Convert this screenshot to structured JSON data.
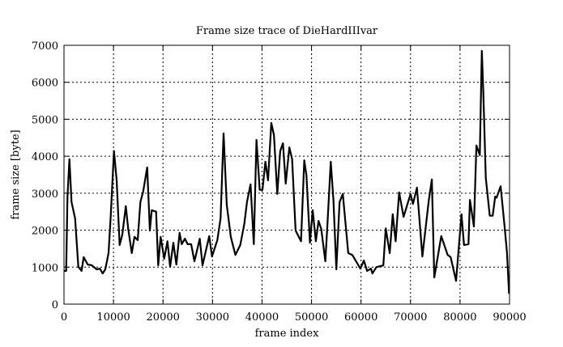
{
  "chart_data": {
    "type": "line",
    "title": "Frame size trace of DieHardIIIvar",
    "xlabel": "frame index",
    "ylabel": "frame size [byte]",
    "xlim": [
      0,
      90000
    ],
    "ylim": [
      0,
      7000
    ],
    "xticks": [
      0,
      10000,
      20000,
      30000,
      40000,
      50000,
      60000,
      70000,
      80000,
      90000
    ],
    "yticks": [
      0,
      1000,
      2000,
      3000,
      4000,
      5000,
      6000,
      7000
    ],
    "grid": true,
    "line_color": "#000000",
    "series": [
      {
        "points": [
          [
            0,
            900
          ],
          [
            440,
            900
          ],
          [
            700,
            2910
          ],
          [
            1100,
            3920
          ],
          [
            1520,
            2760
          ],
          [
            2240,
            2320
          ],
          [
            2900,
            1010
          ],
          [
            3550,
            900
          ],
          [
            3980,
            1270
          ],
          [
            4800,
            1070
          ],
          [
            5610,
            1050
          ],
          [
            6600,
            940
          ],
          [
            7250,
            960
          ],
          [
            7800,
            830
          ],
          [
            8340,
            940
          ],
          [
            9000,
            1380
          ],
          [
            9440,
            2390
          ],
          [
            10090,
            4140
          ],
          [
            10630,
            3350
          ],
          [
            11240,
            1600
          ],
          [
            11780,
            1880
          ],
          [
            12490,
            2650
          ],
          [
            12980,
            2030
          ],
          [
            13700,
            1380
          ],
          [
            14240,
            1820
          ],
          [
            14890,
            1730
          ],
          [
            15430,
            2760
          ],
          [
            15980,
            3040
          ],
          [
            16800,
            3700
          ],
          [
            17340,
            1990
          ],
          [
            17720,
            2540
          ],
          [
            18600,
            2500
          ],
          [
            19030,
            1050
          ],
          [
            19520,
            1820
          ],
          [
            20240,
            1230
          ],
          [
            20890,
            1700
          ],
          [
            21440,
            1010
          ],
          [
            22090,
            1660
          ],
          [
            22690,
            1070
          ],
          [
            23350,
            1930
          ],
          [
            23770,
            1620
          ],
          [
            24430,
            1770
          ],
          [
            24970,
            1620
          ],
          [
            25690,
            1620
          ],
          [
            26340,
            1160
          ],
          [
            27430,
            1770
          ],
          [
            27980,
            1050
          ],
          [
            29340,
            1840
          ],
          [
            29890,
            1290
          ],
          [
            30970,
            1730
          ],
          [
            31630,
            2320
          ],
          [
            32230,
            4620
          ],
          [
            32880,
            2690
          ],
          [
            33700,
            1820
          ],
          [
            34630,
            1330
          ],
          [
            35610,
            1600
          ],
          [
            36430,
            2170
          ],
          [
            36970,
            2760
          ],
          [
            37680,
            3240
          ],
          [
            38340,
            1620
          ],
          [
            38880,
            4440
          ],
          [
            39540,
            3090
          ],
          [
            40090,
            3090
          ],
          [
            40680,
            3850
          ],
          [
            41220,
            3350
          ],
          [
            41870,
            4900
          ],
          [
            42420,
            4570
          ],
          [
            43080,
            2980
          ],
          [
            43680,
            4140
          ],
          [
            44230,
            4350
          ],
          [
            44780,
            3260
          ],
          [
            45530,
            4240
          ],
          [
            46080,
            3920
          ],
          [
            46790,
            1990
          ],
          [
            47880,
            1700
          ],
          [
            48540,
            3890
          ],
          [
            48970,
            3480
          ],
          [
            49680,
            1660
          ],
          [
            50230,
            2540
          ],
          [
            50880,
            1700
          ],
          [
            51420,
            2250
          ],
          [
            51970,
            2030
          ],
          [
            52790,
            1160
          ],
          [
            53170,
            2030
          ],
          [
            53880,
            3850
          ],
          [
            54420,
            2820
          ],
          [
            55020,
            940
          ],
          [
            55670,
            2760
          ],
          [
            56330,
            2980
          ],
          [
            57420,
            1380
          ],
          [
            58240,
            1330
          ],
          [
            59880,
            960
          ],
          [
            60580,
            1180
          ],
          [
            61240,
            900
          ],
          [
            62000,
            960
          ],
          [
            62300,
            830
          ],
          [
            63100,
            1000
          ],
          [
            64500,
            1050
          ],
          [
            65000,
            2050
          ],
          [
            65800,
            1380
          ],
          [
            66400,
            2430
          ],
          [
            67000,
            1700
          ],
          [
            67700,
            3020
          ],
          [
            68600,
            2360
          ],
          [
            70000,
            2980
          ],
          [
            70500,
            2710
          ],
          [
            71300,
            3150
          ],
          [
            72400,
            1290
          ],
          [
            73700,
            2820
          ],
          [
            74300,
            3370
          ],
          [
            74800,
            720
          ],
          [
            76200,
            1840
          ],
          [
            77500,
            1330
          ],
          [
            78100,
            1270
          ],
          [
            79200,
            630
          ],
          [
            80300,
            2430
          ],
          [
            80800,
            1600
          ],
          [
            81700,
            1620
          ],
          [
            82000,
            2820
          ],
          [
            82800,
            2100
          ],
          [
            83300,
            4290
          ],
          [
            84000,
            4030
          ],
          [
            84400,
            6850
          ],
          [
            84700,
            5750
          ],
          [
            85200,
            3410
          ],
          [
            86000,
            2390
          ],
          [
            86600,
            2390
          ],
          [
            87100,
            2910
          ],
          [
            87400,
            2880
          ],
          [
            88200,
            3190
          ],
          [
            89000,
            2100
          ],
          [
            89500,
            1380
          ],
          [
            89900,
            280
          ]
        ]
      }
    ]
  }
}
